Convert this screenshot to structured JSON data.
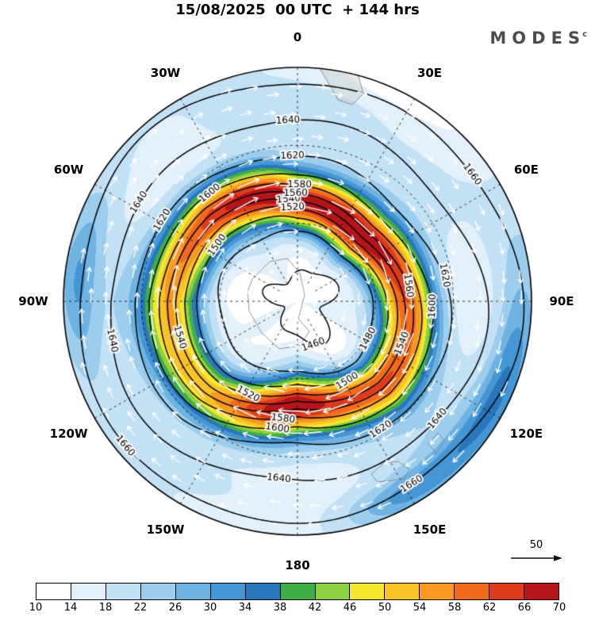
{
  "title": "15/08/2025  00 UTC  + 144 hrs",
  "logo": {
    "text": "MODES",
    "mark": "c"
  },
  "wind_legend": {
    "value": "50"
  },
  "colorbar": {
    "tick_labels": [
      "10",
      "14",
      "18",
      "22",
      "26",
      "30",
      "34",
      "38",
      "42",
      "46",
      "50",
      "54",
      "58",
      "62",
      "66",
      "70"
    ],
    "cell_colors": [
      "#ffffff",
      "#e1f0fa",
      "#c3e1f5",
      "#9ccdec",
      "#6fb3e2",
      "#4496d4",
      "#2a76bd",
      "#3fae49",
      "#8ed044",
      "#f5e72e",
      "#f9c327",
      "#f89a22",
      "#f26a1e",
      "#dd3b1d",
      "#b5141b"
    ]
  },
  "map": {
    "longitude_labels": [
      {
        "label": "0",
        "angle_deg": -90
      },
      {
        "label": "30E",
        "angle_deg": -60
      },
      {
        "label": "60E",
        "angle_deg": -30
      },
      {
        "label": "90E",
        "angle_deg": 0
      },
      {
        "label": "120E",
        "angle_deg": 30
      },
      {
        "label": "150E",
        "angle_deg": 60
      },
      {
        "label": "180",
        "angle_deg": 90
      },
      {
        "label": "150W",
        "angle_deg": 120
      },
      {
        "label": "120W",
        "angle_deg": 150
      },
      {
        "label": "90W",
        "angle_deg": 180
      },
      {
        "label": "60W",
        "angle_deg": -150
      },
      {
        "label": "30W",
        "angle_deg": -120
      }
    ],
    "contour_labels": [
      {
        "value": 1460,
        "angles_deg": [
          70
        ]
      },
      {
        "value": 1480,
        "angles_deg": [
          28
        ]
      },
      {
        "value": 1500,
        "angles_deg": [
          215,
          58
        ]
      },
      {
        "value": 1520,
        "angles_deg": [
          -93,
          118
        ]
      },
      {
        "value": 1540,
        "angles_deg": [
          -95,
          163,
          22
        ]
      },
      {
        "value": 1560,
        "angles_deg": [
          -91,
          -8
        ]
      },
      {
        "value": 1580,
        "angles_deg": [
          -89,
          97
        ]
      },
      {
        "value": 1600,
        "angles_deg": [
          231,
          99,
          2
        ]
      },
      {
        "value": 1620,
        "angles_deg": [
          -92,
          211,
          -10,
          57
        ]
      },
      {
        "value": 1640,
        "angles_deg": [
          -93,
          212,
          168,
          96,
          40
        ]
      },
      {
        "value": 1660,
        "angles_deg": [
          -36,
          140,
          58
        ]
      }
    ]
  },
  "chart_data": {
    "type": "heatmap",
    "title": "15/08/2025  00 UTC  + 144 hrs",
    "projection": "polar stereographic disc, longitude labels every 30 degrees, dashed graticule circles and radials",
    "longitude_labels": [
      "0",
      "30E",
      "60E",
      "90E",
      "120E",
      "150E",
      "180",
      "150W",
      "120W",
      "90W",
      "60W",
      "30W"
    ],
    "colorbar_ticks": [
      10,
      14,
      18,
      22,
      26,
      30,
      34,
      38,
      42,
      46,
      50,
      54,
      58,
      62,
      66,
      70
    ],
    "colorbar_colors": [
      "#ffffff",
      "#e1f0fa",
      "#c3e1f5",
      "#9ccdec",
      "#6fb3e2",
      "#4496d4",
      "#2a76bd",
      "#3fae49",
      "#8ed044",
      "#f5e72e",
      "#f9c327",
      "#f89a22",
      "#f26a1e",
      "#dd3b1d",
      "#b5141b"
    ],
    "contour_levels": [
      1460,
      1480,
      1500,
      1520,
      1540,
      1560,
      1580,
      1600,
      1620,
      1640,
      1660
    ],
    "contour_interval": 20,
    "shading_structure": "calm white/pale center near pole, ring of maximum values 58-70 between one third and two thirds radius (strongest toward top and bottom, weaker orange at left), blue 18-30 toward outer edge with green 38-46 patches at right, lower-right and left edges",
    "vector_overlay": "white arrows circulating clockwise along contours",
    "vector_reference_value": 50,
    "colorbar_position": "bottom"
  }
}
